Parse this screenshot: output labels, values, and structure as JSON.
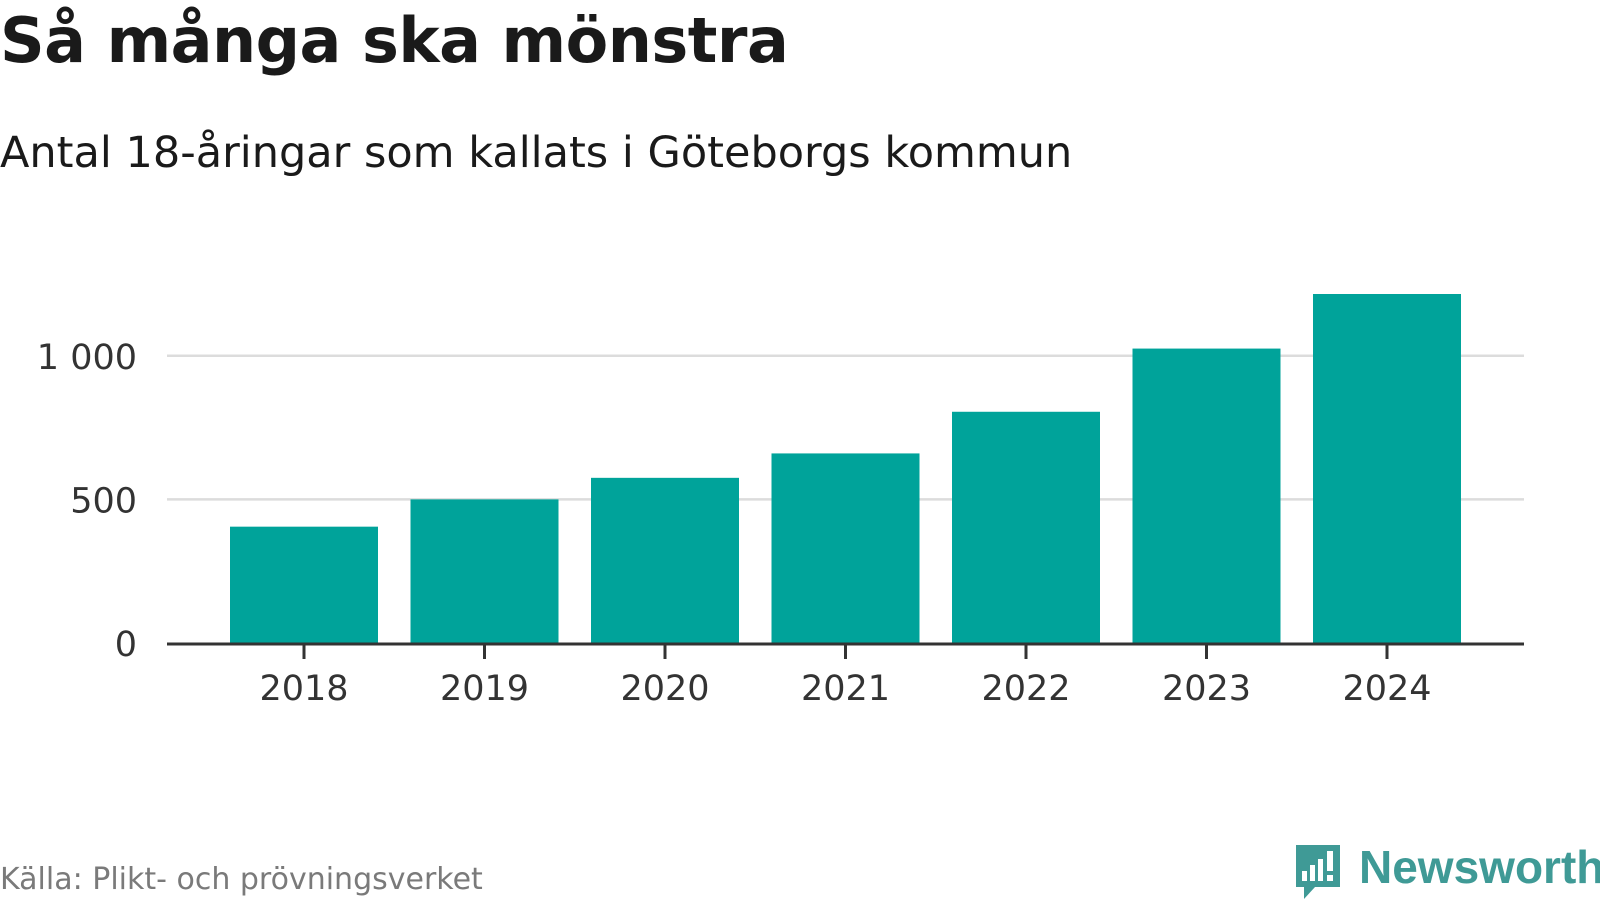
{
  "title": "Så många ska mönstra",
  "subtitle": "Antal 18-åringar som kallats i Göteborgs kommun",
  "source": "Källa: Plikt- och prövningsverket",
  "brand": {
    "name": "Newsworthy",
    "icon": "newsworthy-logo-icon",
    "color": "#3f9a96"
  },
  "colors": {
    "bar": "#00a39a",
    "grid": "#dcdcdc",
    "axis": "#333333",
    "text": "#333333"
  },
  "chart_data": {
    "type": "bar",
    "categories": [
      "2018",
      "2019",
      "2020",
      "2021",
      "2022",
      "2023",
      "2024"
    ],
    "values": [
      405,
      500,
      575,
      660,
      805,
      1025,
      1215
    ],
    "title": "Så många ska mönstra",
    "subtitle": "Antal 18-åringar som kallats i Göteborgs kommun",
    "xlabel": "",
    "ylabel": "",
    "ylim": [
      0,
      1215
    ],
    "yticks": [
      0,
      500,
      1000
    ],
    "ytick_labels": [
      "0",
      "500",
      "1 000"
    ],
    "grid": true,
    "legend": "none"
  }
}
